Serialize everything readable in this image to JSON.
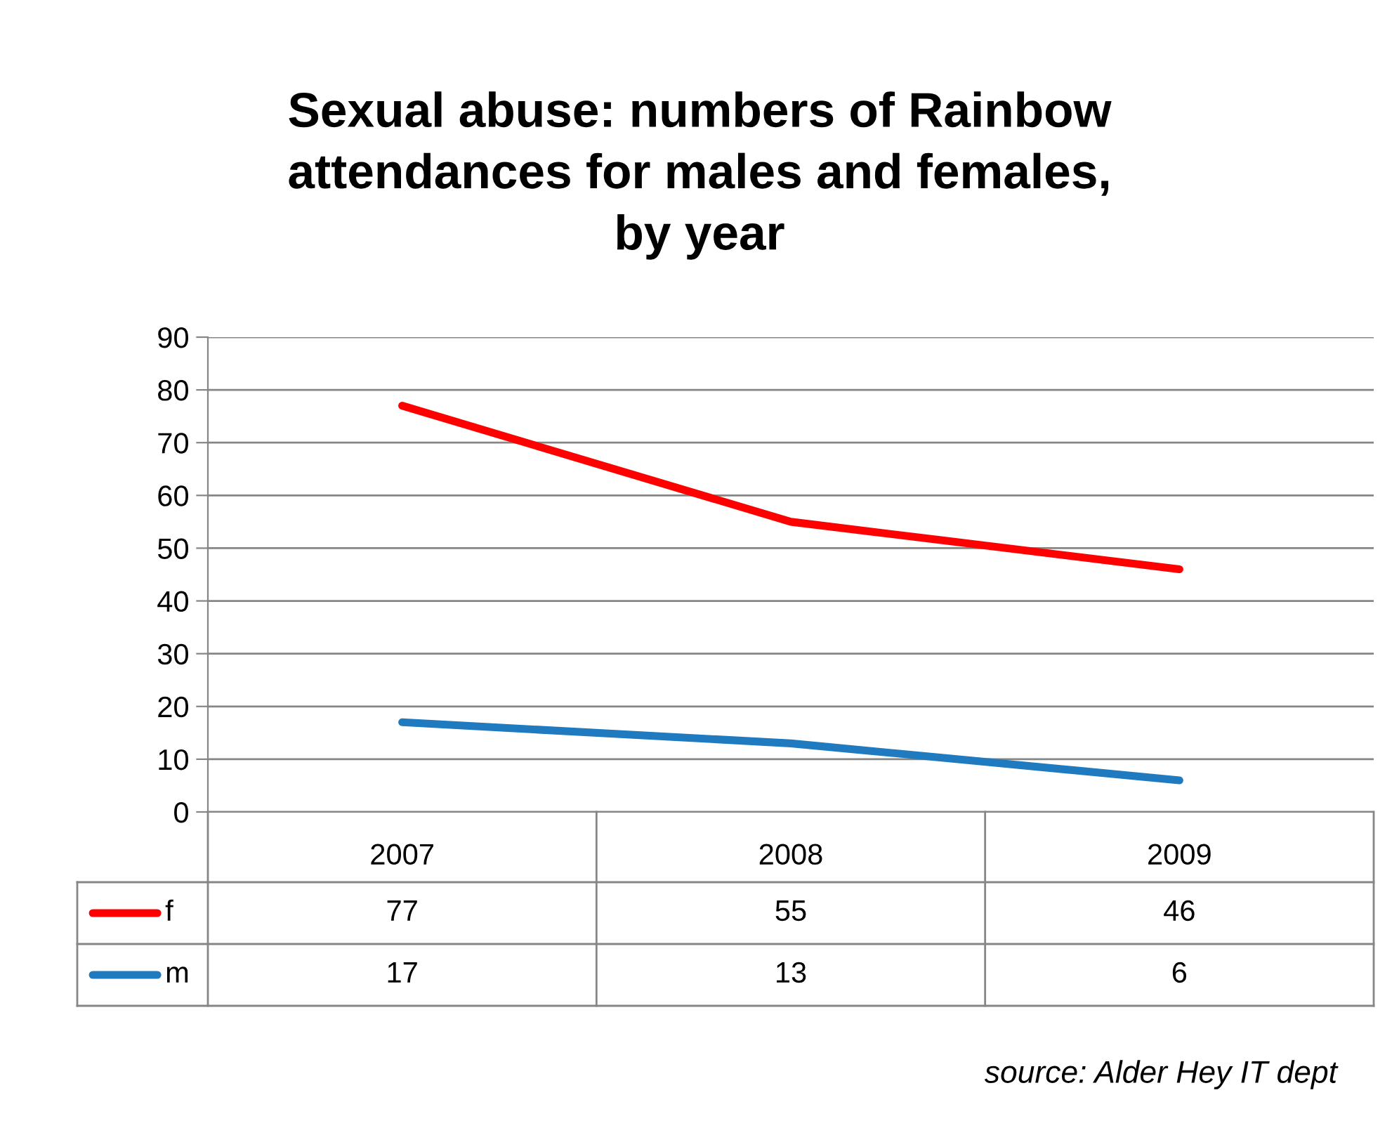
{
  "chart_data": {
    "type": "line",
    "title": "Sexual abuse: numbers of Rainbow\nattendances for males and females,\nby year",
    "categories": [
      "2007",
      "2008",
      "2009"
    ],
    "series": [
      {
        "name": "f",
        "color": "#ff0000",
        "values": [
          77,
          55,
          46
        ]
      },
      {
        "name": "m",
        "color": "#1f7ac0",
        "values": [
          17,
          13,
          6
        ]
      }
    ],
    "ylim": [
      0,
      90
    ],
    "yticks": [
      0,
      10,
      20,
      30,
      40,
      50,
      60,
      70,
      80,
      90
    ],
    "grid": "y",
    "legend": "left",
    "data_labels": true,
    "marker": "none",
    "annotations": [
      "source: Alder Hey IT dept"
    ]
  }
}
